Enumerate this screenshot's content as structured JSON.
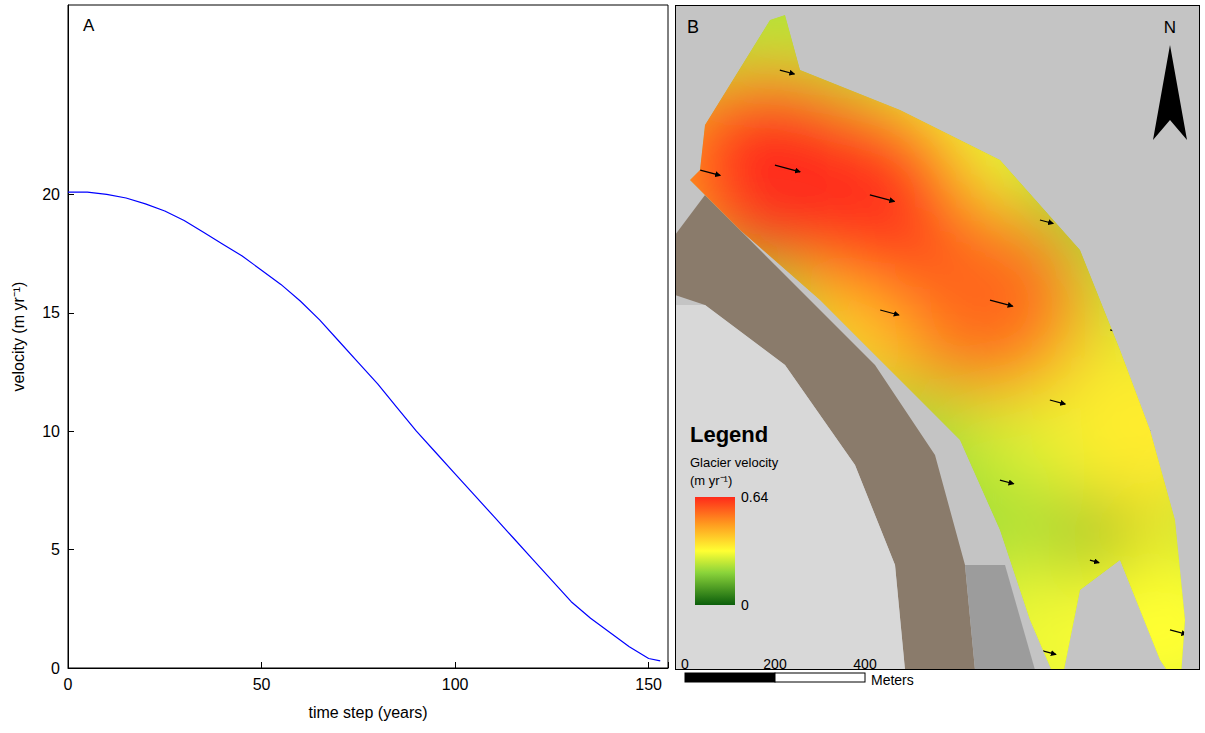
{
  "chart_data": {
    "type": "line",
    "panel_label": "A",
    "x_label": "time step (years)",
    "y_label": "velocity (m yr⁻¹)",
    "x": [
      0,
      5,
      10,
      15,
      20,
      25,
      30,
      35,
      40,
      45,
      50,
      55,
      60,
      65,
      70,
      75,
      80,
      85,
      90,
      95,
      100,
      105,
      110,
      115,
      120,
      125,
      130,
      135,
      140,
      145,
      150,
      153
    ],
    "values": [
      20.1,
      20.1,
      20.0,
      19.85,
      19.6,
      19.3,
      18.9,
      18.4,
      17.9,
      17.4,
      16.8,
      16.2,
      15.5,
      14.7,
      13.8,
      12.9,
      12.0,
      11.0,
      10.0,
      9.1,
      8.2,
      7.3,
      6.4,
      5.5,
      4.6,
      3.7,
      2.8,
      2.1,
      1.5,
      0.9,
      0.4,
      0.3
    ],
    "color": "#0000ff",
    "xlim": [
      0,
      155
    ],
    "xticks": [
      0,
      50,
      100,
      150
    ],
    "ylim": [
      0,
      28
    ],
    "yticks": [
      0,
      5,
      10,
      15,
      20
    ],
    "grid": false
  },
  "map": {
    "panel_label": "B",
    "north_label": "N",
    "legend_title": "Legend",
    "colorbar": {
      "label": [
        "Glacier velocity",
        "(m yr⁻¹)"
      ],
      "range": [
        0,
        0.64
      ],
      "ticks": [
        0,
        0.64
      ]
    },
    "velocity_samples": [
      {
        "x": 922,
        "y": 244,
        "v": 0.05
      },
      {
        "x": 811,
        "y": 1000,
        "v": 0.2
      },
      {
        "x": 722,
        "y": 422,
        "v": 0.22
      },
      {
        "x": 233,
        "y": 1333,
        "v": 0.25
      },
      {
        "x": 967,
        "y": 756,
        "v": 0.25
      },
      {
        "x": 833,
        "y": 600,
        "v": 0.28
      },
      {
        "x": 633,
        "y": 1200,
        "v": 0.3
      },
      {
        "x": 811,
        "y": 44,
        "v": 0.3
      },
      {
        "x": 1100,
        "y": 89,
        "v": 0.32
      },
      {
        "x": 1056,
        "y": 533,
        "v": 0.35
      },
      {
        "x": 456,
        "y": 800,
        "v": 0.4
      },
      {
        "x": 56,
        "y": 1111,
        "v": 0.45
      },
      {
        "x": 700,
        "y": 822,
        "v": 0.55
      },
      {
        "x": 433,
        "y": 1056,
        "v": 0.62
      },
      {
        "x": 222,
        "y": 1122,
        "v": 0.64
      }
    ],
    "scale_bar": {
      "ticks": [
        0,
        200,
        400
      ],
      "unit": "Meters"
    }
  }
}
